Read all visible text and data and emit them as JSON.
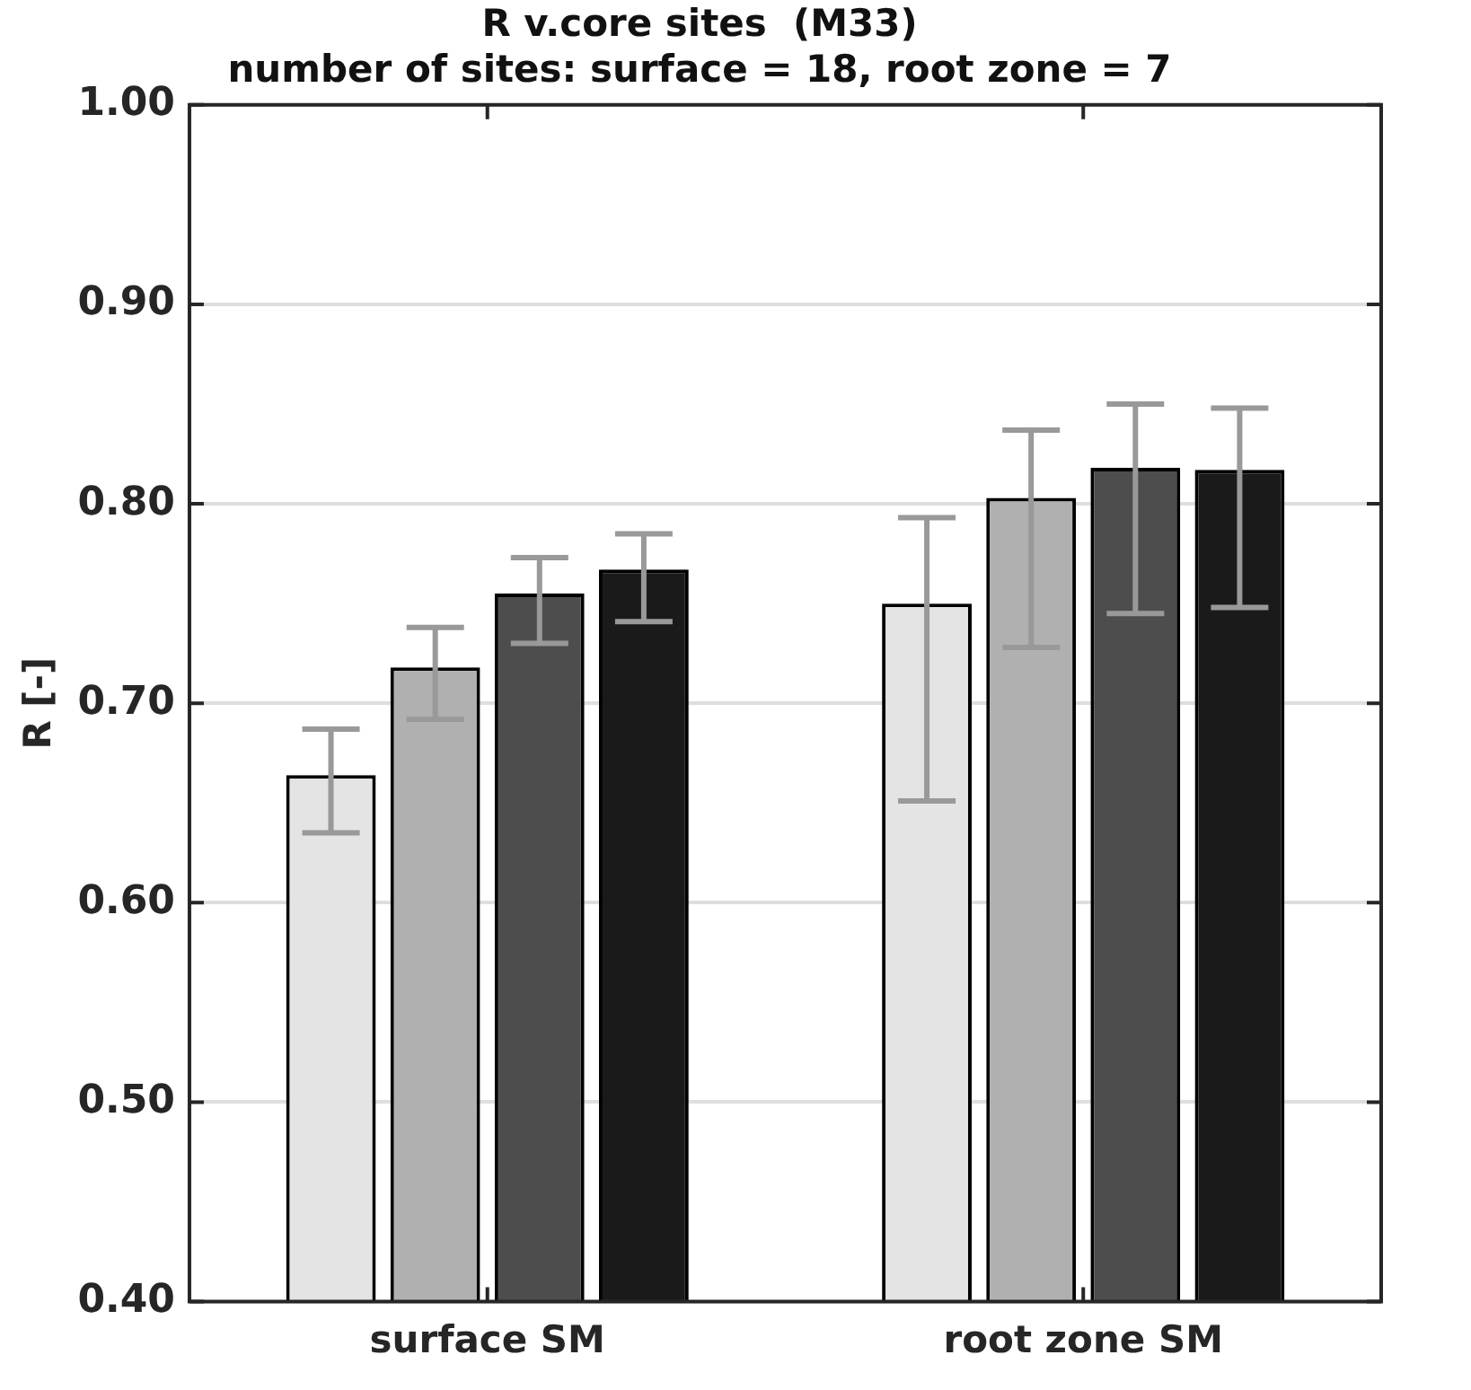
{
  "chart_data": {
    "type": "bar",
    "title": "R v.core sites  (M33)",
    "subtitle": "number of sites: surface = 18, root zone = 7",
    "ylabel": "R [-]",
    "categories": [
      "surface SM",
      "root zone SM"
    ],
    "series": [
      {
        "color": "#e4e4e4",
        "values": [
          0.664,
          0.75
        ],
        "errors": [
          [
            0.635,
            0.687
          ],
          [
            0.651,
            0.793
          ]
        ]
      },
      {
        "color": "#b0b0b0",
        "values": [
          0.718,
          0.803
        ],
        "errors": [
          [
            0.692,
            0.738
          ],
          [
            0.728,
            0.837
          ]
        ]
      },
      {
        "color": "#4d4d4d",
        "values": [
          0.755,
          0.818
        ],
        "errors": [
          [
            0.73,
            0.773
          ],
          [
            0.745,
            0.85
          ]
        ]
      },
      {
        "color": "#1a1a1a",
        "values": [
          0.767,
          0.817
        ],
        "errors": [
          [
            0.741,
            0.785
          ],
          [
            0.748,
            0.848
          ]
        ]
      }
    ],
    "ylim": [
      0.4,
      1.0
    ],
    "yticks": [
      {
        "value": 0.4,
        "label": "0.40"
      },
      {
        "value": 0.5,
        "label": "0.50"
      },
      {
        "value": 0.6,
        "label": "0.60"
      },
      {
        "value": 0.7,
        "label": "0.70"
      },
      {
        "value": 0.8,
        "label": "0.80"
      },
      {
        "value": 0.9,
        "label": "0.90"
      },
      {
        "value": 1.0,
        "label": "1.00"
      }
    ],
    "grid": "y",
    "legend": false
  }
}
